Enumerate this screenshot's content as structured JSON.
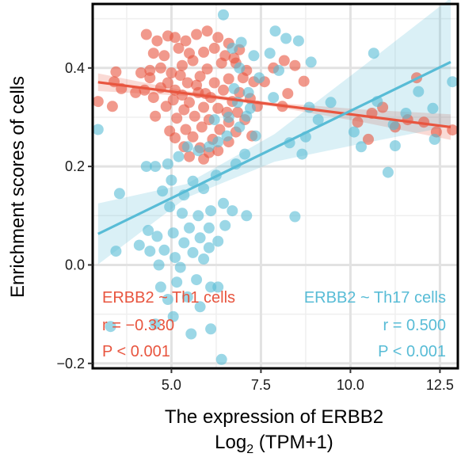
{
  "chart_data": {
    "type": "scatter",
    "xlabel": "The expression of ERBB2",
    "xlabel_line2": "Log",
    "xlabel_sub": "2",
    "xlabel_tail": " (TPM+1)",
    "ylabel": "Enrichment scores of cells",
    "xlim": [
      2.8,
      13.0
    ],
    "ylim": [
      -0.21,
      0.53
    ],
    "x_ticks": [
      5.0,
      7.5,
      10.0,
      12.5
    ],
    "x_tick_labels": [
      "5.0",
      "7.5",
      "10.0",
      "12.5"
    ],
    "y_ticks": [
      -0.2,
      0.0,
      0.2,
      0.4
    ],
    "y_tick_labels": [
      "−0.2",
      "0.0",
      "0.2",
      "0.4"
    ],
    "grid": true,
    "series": [
      {
        "name": "ERBB2 ~ Th1 cells",
        "color": "#E8553F",
        "fit": {
          "x0": 2.95,
          "y0": 0.371,
          "x1": 12.8,
          "y1": 0.28
        },
        "ci_width": [
          0.018,
          0.005,
          0.004,
          0.013,
          0.026
        ],
        "r_label": "r = −0.330",
        "p_label": "P < 0.001",
        "points": [
          [
            4.3,
            0.468
          ],
          [
            4.6,
            0.455
          ],
          [
            4.9,
            0.465
          ],
          [
            5.1,
            0.462
          ],
          [
            5.4,
            0.455
          ],
          [
            5.7,
            0.468
          ],
          [
            6.0,
            0.475
          ],
          [
            6.3,
            0.462
          ],
          [
            5.2,
            0.44
          ],
          [
            4.5,
            0.43
          ],
          [
            4.8,
            0.425
          ],
          [
            5.5,
            0.43
          ],
          [
            5.9,
            0.432
          ],
          [
            6.2,
            0.44
          ],
          [
            6.6,
            0.45
          ],
          [
            6.9,
            0.437
          ],
          [
            5.6,
            0.415
          ],
          [
            5.3,
            0.405
          ],
          [
            4.7,
            0.4
          ],
          [
            4.4,
            0.395
          ],
          [
            4.15,
            0.39
          ],
          [
            5.0,
            0.39
          ],
          [
            6.0,
            0.398
          ],
          [
            6.4,
            0.41
          ],
          [
            6.8,
            0.41
          ],
          [
            7.1,
            0.395
          ],
          [
            5.8,
            0.383
          ],
          [
            5.45,
            0.37
          ],
          [
            4.9,
            0.37
          ],
          [
            4.4,
            0.38
          ],
          [
            5.1,
            0.355
          ],
          [
            5.7,
            0.365
          ],
          [
            6.2,
            0.37
          ],
          [
            6.6,
            0.378
          ],
          [
            7.0,
            0.38
          ],
          [
            7.3,
            0.372
          ],
          [
            5.95,
            0.348
          ],
          [
            5.3,
            0.345
          ],
          [
            4.7,
            0.36
          ],
          [
            6.9,
            0.35
          ],
          [
            6.45,
            0.355
          ],
          [
            6.1,
            0.34
          ],
          [
            5.5,
            0.33
          ],
          [
            5.05,
            0.335
          ],
          [
            4.5,
            0.34
          ],
          [
            4.0,
            0.35
          ],
          [
            6.7,
            0.332
          ],
          [
            7.2,
            0.338
          ],
          [
            5.9,
            0.32
          ],
          [
            5.35,
            0.315
          ],
          [
            4.85,
            0.322
          ],
          [
            6.3,
            0.318
          ],
          [
            6.85,
            0.31
          ],
          [
            7.4,
            0.322
          ],
          [
            5.65,
            0.302
          ],
          [
            5.15,
            0.298
          ],
          [
            4.55,
            0.302
          ],
          [
            6.05,
            0.295
          ],
          [
            6.6,
            0.29
          ],
          [
            7.05,
            0.295
          ],
          [
            5.85,
            0.28
          ],
          [
            5.4,
            0.275
          ],
          [
            4.95,
            0.272
          ],
          [
            6.35,
            0.275
          ],
          [
            6.8,
            0.27
          ],
          [
            5.6,
            0.26
          ],
          [
            5.1,
            0.258
          ],
          [
            6.15,
            0.255
          ],
          [
            6.6,
            0.25
          ],
          [
            5.35,
            0.24
          ],
          [
            5.8,
            0.238
          ],
          [
            6.05,
            0.228
          ],
          [
            5.5,
            0.22
          ],
          [
            5.9,
            0.215
          ],
          [
            6.3,
            0.232
          ],
          [
            7.25,
            0.262
          ],
          [
            7.6,
            0.372
          ],
          [
            7.85,
            0.4
          ],
          [
            8.15,
            0.415
          ],
          [
            8.45,
            0.405
          ],
          [
            8.25,
            0.348
          ],
          [
            8.7,
            0.373
          ],
          [
            8.1,
            0.322
          ],
          [
            3.45,
            0.392
          ],
          [
            3.4,
            0.372
          ],
          [
            3.6,
            0.358
          ],
          [
            2.95,
            0.332
          ],
          [
            3.35,
            0.322
          ],
          [
            10.2,
            0.29
          ],
          [
            10.5,
            0.255
          ],
          [
            10.6,
            0.308
          ],
          [
            10.9,
            0.32
          ],
          [
            11.25,
            0.28
          ],
          [
            11.6,
            0.295
          ],
          [
            11.85,
            0.38
          ],
          [
            12.05,
            0.29
          ],
          [
            12.4,
            0.27
          ],
          [
            12.85,
            0.274
          ],
          [
            6.5,
            0.425
          ],
          [
            5.25,
            0.385
          ],
          [
            4.25,
            0.355
          ],
          [
            6.75,
            0.42
          ],
          [
            5.75,
            0.35
          ],
          [
            6.55,
            0.31
          ]
        ]
      },
      {
        "name": "ERBB2 ~ Th17 cells",
        "color": "#58BCD6",
        "fit": {
          "x0": 2.95,
          "y0": 0.063,
          "x1": 12.8,
          "y1": 0.412
        },
        "ci_width": [
          0.062,
          0.014,
          0.028,
          0.078,
          0.13
        ],
        "r_label": "r = 0.500",
        "p_label": "P < 0.001",
        "points": [
          [
            6.45,
            0.508
          ],
          [
            6.95,
            0.452
          ],
          [
            6.7,
            0.44
          ],
          [
            7.3,
            0.425
          ],
          [
            7.75,
            0.43
          ],
          [
            6.9,
            0.4
          ],
          [
            7.45,
            0.38
          ],
          [
            7.15,
            0.35
          ],
          [
            6.85,
            0.33
          ],
          [
            6.6,
            0.3
          ],
          [
            7.1,
            0.302
          ],
          [
            6.9,
            0.28
          ],
          [
            6.55,
            0.262
          ],
          [
            6.3,
            0.25
          ],
          [
            6.05,
            0.24
          ],
          [
            5.75,
            0.232
          ],
          [
            5.45,
            0.24
          ],
          [
            5.2,
            0.22
          ],
          [
            4.9,
            0.205
          ],
          [
            4.55,
            0.2
          ],
          [
            4.3,
            0.2
          ],
          [
            5.0,
            0.172
          ],
          [
            5.6,
            0.17
          ],
          [
            6.25,
            0.182
          ],
          [
            5.9,
            0.155
          ],
          [
            5.35,
            0.142
          ],
          [
            4.75,
            0.15
          ],
          [
            6.45,
            0.125
          ],
          [
            6.1,
            0.11
          ],
          [
            5.75,
            0.1
          ],
          [
            5.3,
            0.105
          ],
          [
            4.95,
            0.118
          ],
          [
            6.7,
            0.11
          ],
          [
            7.1,
            0.1
          ],
          [
            5.5,
            0.075
          ],
          [
            5.05,
            0.065
          ],
          [
            4.6,
            0.058
          ],
          [
            6.05,
            0.075
          ],
          [
            6.5,
            0.08
          ],
          [
            5.8,
            0.055
          ],
          [
            5.35,
            0.045
          ],
          [
            4.8,
            0.03
          ],
          [
            4.4,
            0.028
          ],
          [
            5.1,
            0.015
          ],
          [
            5.6,
            0.025
          ],
          [
            6.05,
            0.035
          ],
          [
            5.25,
            -0.005
          ],
          [
            4.65,
            0.0
          ],
          [
            5.9,
            0.012
          ],
          [
            6.3,
            0.048
          ],
          [
            5.7,
            -0.03
          ],
          [
            5.15,
            -0.035
          ],
          [
            4.7,
            -0.045
          ],
          [
            6.1,
            -0.045
          ],
          [
            5.45,
            -0.065
          ],
          [
            4.9,
            -0.07
          ],
          [
            5.8,
            -0.085
          ],
          [
            6.3,
            -0.045
          ],
          [
            5.05,
            -0.105
          ],
          [
            4.55,
            -0.12
          ],
          [
            6.1,
            -0.13
          ],
          [
            5.55,
            -0.14
          ],
          [
            6.4,
            -0.192
          ],
          [
            3.3,
            -0.125
          ],
          [
            3.45,
            0.028
          ],
          [
            3.55,
            0.145
          ],
          [
            2.95,
            0.275
          ],
          [
            6.2,
            0.295
          ],
          [
            7.9,
            0.475
          ],
          [
            8.2,
            0.46
          ],
          [
            8.55,
            0.455
          ],
          [
            8.0,
            0.395
          ],
          [
            7.85,
            0.34
          ],
          [
            8.85,
            0.32
          ],
          [
            9.45,
            0.33
          ],
          [
            9.1,
            0.295
          ],
          [
            8.75,
            0.26
          ],
          [
            8.3,
            0.248
          ],
          [
            8.65,
            0.225
          ],
          [
            8.45,
            0.098
          ],
          [
            10.3,
            0.24
          ],
          [
            10.1,
            0.27
          ],
          [
            10.65,
            0.43
          ],
          [
            10.75,
            0.332
          ],
          [
            11.2,
            0.285
          ],
          [
            11.05,
            0.188
          ],
          [
            11.25,
            0.242
          ],
          [
            11.55,
            0.308
          ],
          [
            11.9,
            0.352
          ],
          [
            12.3,
            0.318
          ],
          [
            12.35,
            0.255
          ],
          [
            12.85,
            0.372
          ],
          [
            7.35,
            0.262
          ],
          [
            7.05,
            0.225
          ],
          [
            6.8,
            0.205
          ],
          [
            4.1,
            0.04
          ],
          [
            4.35,
            0.07
          ],
          [
            6.75,
            0.358
          ],
          [
            7.2,
            0.318
          ],
          [
            8.9,
            0.412
          ]
        ]
      }
    ]
  }
}
